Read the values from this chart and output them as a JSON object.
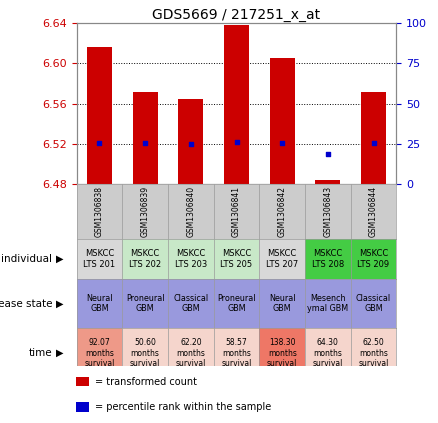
{
  "title": "GDS5669 / 217251_x_at",
  "samples": [
    "GSM1306838",
    "GSM1306839",
    "GSM1306840",
    "GSM1306841",
    "GSM1306842",
    "GSM1306843",
    "GSM1306844"
  ],
  "transformed_count": [
    6.616,
    6.572,
    6.565,
    6.638,
    6.605,
    6.484,
    6.572
  ],
  "bar_bottom": 6.48,
  "percentile_rank_yvals": [
    6.521,
    6.521,
    6.52,
    6.522,
    6.521,
    6.51,
    6.521
  ],
  "ylim_left": [
    6.48,
    6.64
  ],
  "ylim_right": [
    0,
    100
  ],
  "yticks_left": [
    6.48,
    6.52,
    6.56,
    6.6,
    6.64
  ],
  "yticks_right": [
    0,
    25,
    50,
    75,
    100
  ],
  "individual_labels": [
    "MSKCC\nLTS 201",
    "MSKCC\nLTS 202",
    "MSKCC\nLTS 203",
    "MSKCC\nLTS 205",
    "MSKCC\nLTS 207",
    "MSKCC\nLTS 208",
    "MSKCC\nLTS 209"
  ],
  "individual_colors": [
    "#d8d8d8",
    "#c8e8c8",
    "#c8e8c8",
    "#c8e8c8",
    "#d8d8d8",
    "#44cc44",
    "#44cc44"
  ],
  "disease_state_labels": [
    "Neural\nGBM",
    "Proneural\nGBM",
    "Classical\nGBM",
    "Proneural\nGBM",
    "Neural\nGBM",
    "Mesench\nymal GBM",
    "Classical\nGBM"
  ],
  "disease_state_colors": [
    "#9999dd",
    "#9999dd",
    "#9999dd",
    "#9999dd",
    "#9999dd",
    "#9999dd",
    "#9999dd"
  ],
  "time_labels": [
    "92.07\nmonths\nsurvival",
    "50.60\nmonths\nsurvival",
    "62.20\nmonths\nsurvival",
    "58.57\nmonths\nsurvival",
    "138.30\nmonths\nsurvival",
    "64.30\nmonths\nsurvival",
    "62.50\nmonths\nsurvival"
  ],
  "time_colors": [
    "#ee9988",
    "#f5d5cc",
    "#f5d5cc",
    "#f5d5cc",
    "#ee7766",
    "#f5d5cc",
    "#f5d5cc"
  ],
  "bar_color": "#cc0000",
  "dot_color": "#0000cc",
  "grid_color": "#000000",
  "bg_color": "#ffffff",
  "sample_bg_color": "#cccccc",
  "left_label_color": "#cc0000",
  "right_label_color": "#0000cc",
  "row_labels": [
    "individual",
    "disease state",
    "time"
  ],
  "legend_items": [
    "transformed count",
    "percentile rank within the sample"
  ],
  "legend_colors": [
    "#cc0000",
    "#0000cc"
  ]
}
